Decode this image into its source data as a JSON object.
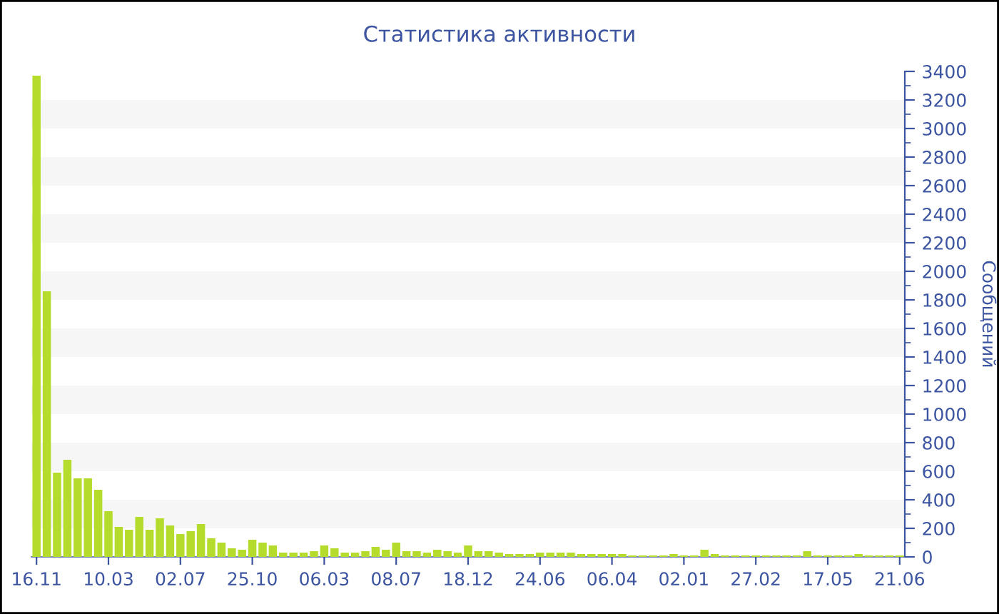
{
  "chart_data": {
    "type": "bar",
    "title": "Статистика активности",
    "ylabel": "Сообщений",
    "categories": [
      "16.11",
      null,
      null,
      null,
      null,
      null,
      null,
      "10.03",
      null,
      null,
      null,
      null,
      null,
      null,
      "02.07",
      null,
      null,
      null,
      null,
      null,
      null,
      "25.10",
      null,
      null,
      null,
      null,
      null,
      null,
      "06.03",
      null,
      null,
      null,
      null,
      null,
      null,
      "08.07",
      null,
      null,
      null,
      null,
      null,
      null,
      "18.12",
      null,
      null,
      null,
      null,
      null,
      null,
      "24.06",
      null,
      null,
      null,
      null,
      null,
      null,
      "06.04",
      null,
      null,
      null,
      null,
      null,
      null,
      "02.01",
      null,
      null,
      null,
      null,
      null,
      null,
      "27.02",
      null,
      null,
      null,
      null,
      null,
      null,
      "17.05",
      null,
      null,
      null,
      null,
      null,
      null,
      "21.06"
    ],
    "values": [
      3370,
      1860,
      590,
      680,
      550,
      550,
      470,
      320,
      210,
      190,
      280,
      190,
      270,
      220,
      160,
      180,
      230,
      130,
      100,
      60,
      50,
      120,
      100,
      80,
      30,
      30,
      30,
      40,
      80,
      60,
      30,
      30,
      40,
      70,
      50,
      100,
      40,
      40,
      30,
      50,
      40,
      30,
      80,
      40,
      40,
      30,
      20,
      20,
      20,
      30,
      30,
      30,
      30,
      20,
      20,
      20,
      20,
      20,
      10,
      10,
      10,
      10,
      20,
      10,
      10,
      50,
      20,
      10,
      10,
      10,
      10,
      10,
      10,
      10,
      10,
      40,
      10,
      10,
      10,
      10,
      20,
      10,
      10,
      10,
      10
    ],
    "color": "#b5dc2c",
    "ylim": [
      0,
      3400
    ],
    "yticks": [
      0,
      200,
      400,
      600,
      800,
      1000,
      1200,
      1400,
      1600,
      1800,
      2000,
      2200,
      2400,
      2600,
      2800,
      3000,
      3200,
      3400
    ],
    "legend": false,
    "bands": [
      {
        "axis": "y",
        "from": 200,
        "to": 400,
        "color": "#f6f6f6"
      },
      {
        "axis": "y",
        "from": 600,
        "to": 800,
        "color": "#f6f6f6"
      },
      {
        "axis": "y",
        "from": 1000,
        "to": 1200,
        "color": "#f6f6f6"
      },
      {
        "axis": "y",
        "from": 1400,
        "to": 1600,
        "color": "#f6f6f6"
      },
      {
        "axis": "y",
        "from": 1800,
        "to": 2000,
        "color": "#f6f6f6"
      },
      {
        "axis": "y",
        "from": 2200,
        "to": 2400,
        "color": "#f6f6f6"
      },
      {
        "axis": "y",
        "from": 2600,
        "to": 2800,
        "color": "#f6f6f6"
      },
      {
        "axis": "y",
        "from": 3000,
        "to": 3200,
        "color": "#f6f6f6"
      }
    ]
  }
}
